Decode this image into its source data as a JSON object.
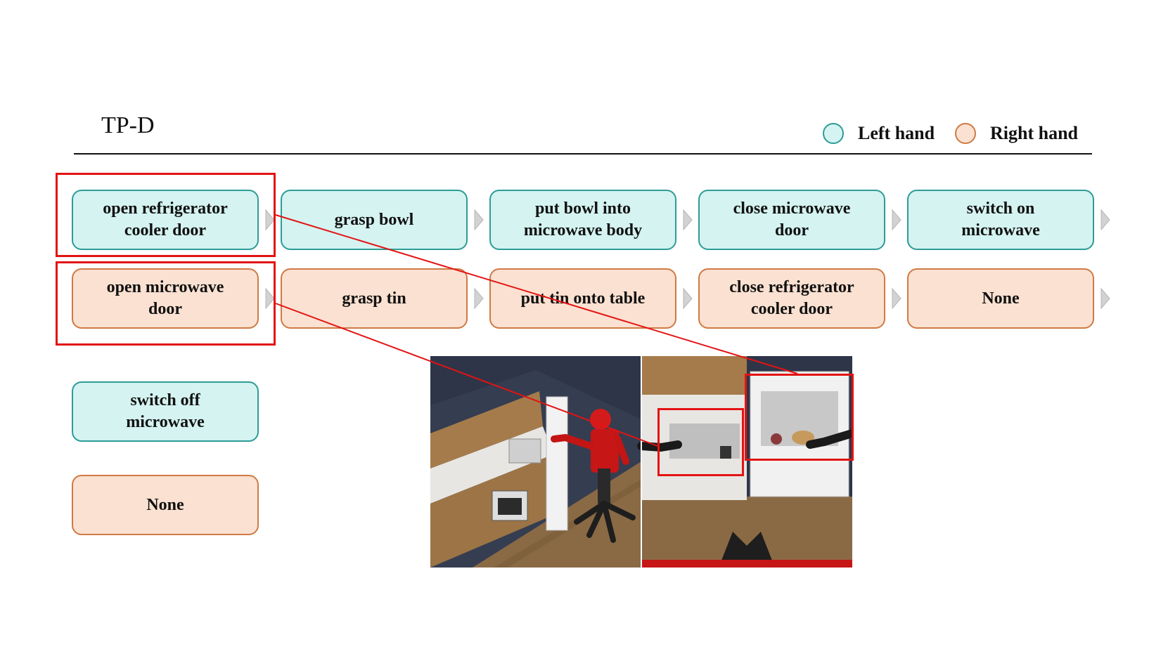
{
  "title": "TP-D",
  "legend": {
    "left_hand": {
      "label": "Left hand",
      "fill": "#d4f3f1",
      "stroke": "#2e9c97"
    },
    "right_hand": {
      "label": "Right hand",
      "fill": "#fbe1d1",
      "stroke": "#cf7a45"
    }
  },
  "steps_row1": [
    "open refrigerator\ncooler door",
    "grasp bowl",
    "put bowl into\nmicrowave body",
    "close microwave\ndoor",
    "switch on\nmicrowave"
  ],
  "steps_row2": [
    "open microwave\ndoor",
    "grasp tin",
    "put tin onto table",
    "close refrigerator\ncooler door",
    "None"
  ],
  "steps_next": {
    "left": "switch off\nmicrowave",
    "right": "None"
  },
  "colors": {
    "highlight": "#e31313",
    "arrow": "#c9c9c9"
  },
  "scene": {
    "left_view": "robot-kitchen-third-person-view",
    "right_view": "robot-gripper-first-person-view"
  }
}
